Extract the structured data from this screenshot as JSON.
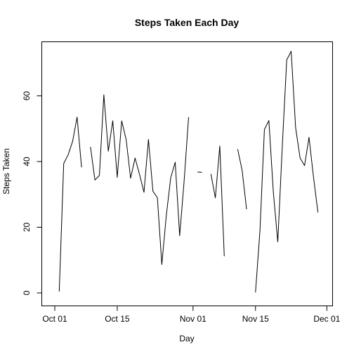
{
  "chart_data": {
    "type": "line",
    "title": "Steps Taken Each Day",
    "xlabel": "Day",
    "ylabel": "Steps Taken",
    "x_ticks": [
      {
        "day": 0,
        "label": "Oct 01"
      },
      {
        "day": 14,
        "label": "Oct 15"
      },
      {
        "day": 31,
        "label": "Nov 01"
      },
      {
        "day": 45,
        "label": "Nov 15"
      },
      {
        "day": 61,
        "label": "Dec 01"
      }
    ],
    "y_ticks": [
      0,
      20,
      40,
      60
    ],
    "xlim": [
      "2012-10-01",
      "2012-11-30"
    ],
    "ylim": [
      0,
      73.59
    ],
    "grid": false,
    "legend": "none",
    "series": [
      {
        "color": "#000000",
        "x": [
          "2012-10-01",
          "2012-10-02",
          "2012-10-03",
          "2012-10-04",
          "2012-10-05",
          "2012-10-06",
          "2012-10-07",
          "2012-10-08",
          "2012-10-09",
          "2012-10-10",
          "2012-10-11",
          "2012-10-12",
          "2012-10-13",
          "2012-10-14",
          "2012-10-15",
          "2012-10-16",
          "2012-10-17",
          "2012-10-18",
          "2012-10-19",
          "2012-10-20",
          "2012-10-21",
          "2012-10-22",
          "2012-10-23",
          "2012-10-24",
          "2012-10-25",
          "2012-10-26",
          "2012-10-27",
          "2012-10-28",
          "2012-10-29",
          "2012-10-30",
          "2012-10-31",
          "2012-11-01",
          "2012-11-02",
          "2012-11-03",
          "2012-11-04",
          "2012-11-05",
          "2012-11-06",
          "2012-11-07",
          "2012-11-08",
          "2012-11-09",
          "2012-11-10",
          "2012-11-11",
          "2012-11-12",
          "2012-11-13",
          "2012-11-14",
          "2012-11-15",
          "2012-11-16",
          "2012-11-17",
          "2012-11-18",
          "2012-11-19",
          "2012-11-20",
          "2012-11-21",
          "2012-11-22",
          "2012-11-23",
          "2012-11-24",
          "2012-11-25",
          "2012-11-26",
          "2012-11-27",
          "2012-11-28",
          "2012-11-29",
          "2012-11-30"
        ],
        "y": [
          null,
          0.44,
          39.42,
          42.07,
          46.16,
          53.54,
          38.25,
          null,
          44.48,
          34.38,
          35.78,
          60.35,
          43.15,
          52.42,
          35.2,
          52.38,
          46.71,
          34.92,
          41.07,
          36.09,
          30.63,
          46.74,
          30.97,
          29.01,
          8.65,
          23.53,
          35.14,
          39.78,
          17.42,
          34.09,
          53.52,
          null,
          36.81,
          36.7,
          null,
          36.25,
          28.94,
          44.73,
          11.18,
          null,
          null,
          43.78,
          37.38,
          25.47,
          null,
          0.14,
          18.89,
          49.79,
          52.47,
          30.7,
          15.53,
          44.4,
          70.93,
          73.59,
          50.27,
          41.09,
          38.76,
          47.38,
          35.36,
          24.47,
          null
        ]
      }
    ]
  }
}
